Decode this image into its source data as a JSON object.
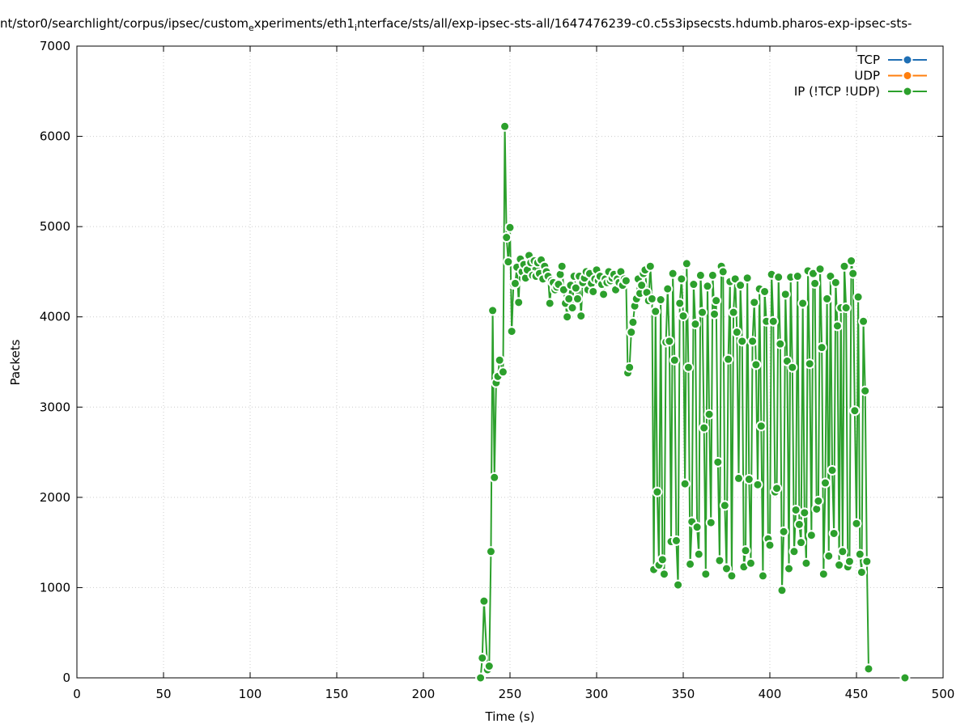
{
  "chart_data": {
    "type": "line",
    "title_parts": [
      "nt/stor0/searchlight/corpus/ipsec/custom",
      "e",
      "xperiments/eth1",
      "i",
      "nterface/sts/all/exp-ipsec-sts-all/1647476239-c0.c5s3ipsecsts.hdumb.pharos-exp-ipsec-sts-"
    ],
    "x_label": "Time (s)",
    "y_label": "Packets",
    "xlim": [
      0,
      500
    ],
    "xticks": [
      0,
      50,
      100,
      150,
      200,
      250,
      300,
      350,
      400,
      450,
      500
    ],
    "ylim": [
      0,
      7000
    ],
    "yticks": [
      0,
      1000,
      2000,
      3000,
      4000,
      5000,
      6000,
      7000
    ],
    "grid": true,
    "legend": "top-right",
    "series": [
      {
        "name": "TCP",
        "color": "#1f6fb4",
        "x": [],
        "values": []
      },
      {
        "name": "UDP",
        "color": "#ff7f0e",
        "x": [],
        "values": []
      },
      {
        "name": "IP (!TCP  !UDP)",
        "color": "#2ca02c",
        "x": [
          233,
          234,
          235,
          237,
          238,
          239,
          240,
          241,
          242,
          243,
          244,
          246,
          247,
          248,
          249,
          250,
          251,
          252,
          253,
          254,
          255,
          256,
          257,
          258,
          259,
          260,
          261,
          262,
          263,
          264,
          265,
          266,
          267,
          268,
          269,
          270,
          271,
          272,
          273,
          274,
          275,
          276,
          277,
          278,
          279,
          280,
          281,
          282,
          283,
          284,
          285,
          286,
          287,
          288,
          289,
          290,
          291,
          292,
          293,
          294,
          295,
          296,
          297,
          298,
          299,
          300,
          301,
          302,
          303,
          304,
          305,
          306,
          307,
          308,
          309,
          310,
          311,
          312,
          313,
          314,
          315,
          316,
          317,
          318,
          319,
          320,
          321,
          322,
          323,
          324,
          325,
          326,
          327,
          328,
          329,
          330,
          331,
          332,
          333,
          334,
          335,
          336,
          337,
          338,
          339,
          340,
          341,
          342,
          343,
          344,
          345,
          346,
          347,
          348,
          349,
          350,
          351,
          352,
          353,
          354,
          355,
          356,
          357,
          358,
          359,
          360,
          361,
          362,
          363,
          364,
          365,
          366,
          367,
          368,
          369,
          370,
          371,
          372,
          373,
          374,
          375,
          376,
          377,
          378,
          379,
          380,
          381,
          382,
          383,
          384,
          385,
          386,
          387,
          388,
          389,
          390,
          391,
          392,
          393,
          394,
          395,
          396,
          397,
          398,
          399,
          400,
          401,
          402,
          403,
          404,
          405,
          406,
          407,
          408,
          409,
          410,
          411,
          412,
          413,
          414,
          415,
          416,
          417,
          418,
          419,
          420,
          421,
          422,
          423,
          424,
          425,
          426,
          427,
          428,
          429,
          430,
          431,
          432,
          433,
          434,
          435,
          436,
          437,
          438,
          439,
          440,
          441,
          442,
          443,
          444,
          445,
          446,
          447,
          448,
          449,
          450,
          451,
          452,
          453,
          454,
          455,
          456,
          457,
          null,
          478
        ],
        "values": [
          0,
          220,
          850,
          90,
          130,
          1400,
          4070,
          2220,
          3270,
          3340,
          3520,
          3390,
          6110,
          4880,
          4610,
          4990,
          3840,
          4360,
          4370,
          4550,
          4160,
          4640,
          4500,
          4580,
          4430,
          4520,
          4680,
          4600,
          4460,
          4620,
          4450,
          4600,
          4480,
          4630,
          4420,
          4560,
          4500,
          4450,
          4150,
          4400,
          4380,
          4300,
          4330,
          4360,
          4470,
          4560,
          4300,
          4150,
          4000,
          4200,
          4350,
          4100,
          4450,
          4320,
          4200,
          4450,
          4010,
          4380,
          4430,
          4500,
          4300,
          4480,
          4370,
          4280,
          4420,
          4520,
          4400,
          4450,
          4360,
          4250,
          4420,
          4380,
          4500,
          4400,
          4430,
          4470,
          4300,
          4420,
          4380,
          4500,
          4350,
          4420,
          4400,
          3380,
          3440,
          3830,
          3940,
          4120,
          4200,
          4420,
          4260,
          4350,
          4480,
          4520,
          4270,
          4180,
          4560,
          4200,
          1200,
          4060,
          2060,
          1250,
          4190,
          1310,
          1150,
          3720,
          4310,
          3730,
          1510,
          4480,
          3520,
          1520,
          1030,
          4150,
          4420,
          4010,
          2150,
          4590,
          3440,
          1260,
          1730,
          4360,
          3920,
          1670,
          1370,
          4460,
          4050,
          2770,
          1150,
          4340,
          2920,
          1720,
          4460,
          4030,
          4180,
          2390,
          1300,
          4560,
          4500,
          1910,
          1210,
          3530,
          4390,
          1130,
          4050,
          4420,
          3830,
          2210,
          4350,
          3730,
          1230,
          1410,
          4430,
          2200,
          1270,
          3730,
          4160,
          3470,
          2140,
          4310,
          2790,
          1130,
          4280,
          3950,
          1540,
          1470,
          4470,
          3950,
          2060,
          2100,
          4440,
          3700,
          970,
          1620,
          4250,
          3510,
          1210,
          4440,
          3440,
          1400,
          1860,
          4450,
          1700,
          1500,
          4150,
          1830,
          1270,
          4510,
          3480,
          1580,
          4480,
          4370,
          1870,
          1960,
          4530,
          3660,
          1150,
          2160,
          4200,
          1350,
          4450,
          2300,
          1600,
          4380,
          3900,
          1250,
          4100,
          1400,
          4560,
          4100,
          1230,
          1290,
          4620,
          4480,
          2960,
          1710,
          4220,
          1370,
          1170,
          3950,
          3180,
          1290,
          100,
          null,
          0
        ]
      }
    ]
  }
}
